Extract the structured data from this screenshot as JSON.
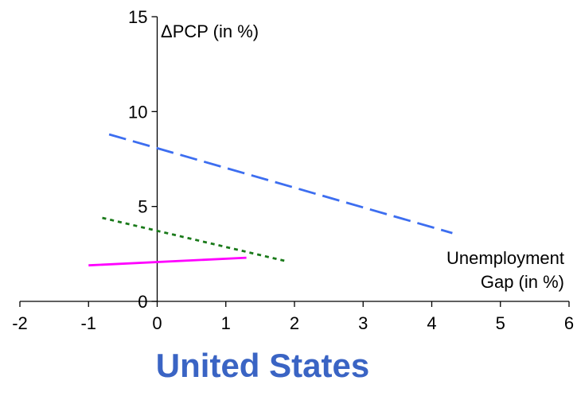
{
  "chart_data": {
    "type": "line",
    "title": "United States",
    "ylabel": "ΔPCP (in %)",
    "xlabel_lines": [
      "Unemployment",
      "Gap (in %)"
    ],
    "xlim": [
      -2,
      6
    ],
    "ylim": [
      0,
      15
    ],
    "x_ticks": [
      -2,
      -1,
      0,
      1,
      2,
      3,
      4,
      5,
      6
    ],
    "y_ticks": [
      0,
      5,
      10,
      15
    ],
    "x_tick_labels": [
      "-2",
      "-1",
      "0",
      "1",
      "2",
      "3",
      "4",
      "5",
      "6"
    ],
    "y_tick_labels": [
      "0",
      "5",
      "10",
      "15"
    ],
    "grid": false,
    "legend": "none",
    "colors": {
      "title": "#3a64c4",
      "axis": "#000000"
    },
    "series": [
      {
        "x": [
          -0.7,
          4.3
        ],
        "y": [
          8.8,
          3.6
        ],
        "color": "#3d6ef0",
        "style": "long-dash"
      },
      {
        "x": [
          -0.8,
          1.9
        ],
        "y": [
          4.4,
          2.1
        ],
        "color": "#1a7a1a",
        "style": "dotted"
      },
      {
        "x": [
          -1.0,
          1.3
        ],
        "y": [
          1.9,
          2.3
        ],
        "color": "#ff00ff",
        "style": "solid"
      }
    ]
  }
}
